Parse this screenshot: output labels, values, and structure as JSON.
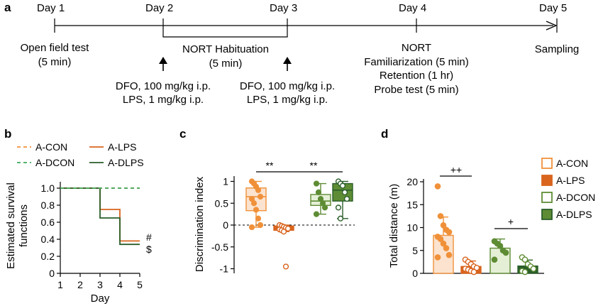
{
  "panel_a": {
    "label": "a",
    "days": [
      "Day 1",
      "Day 2",
      "Day 3",
      "Day 4",
      "Day 5"
    ],
    "texts": {
      "day1_line1": "Open field test",
      "day1_line2": "(5 min)",
      "hab_line1": "NORT Habituation",
      "hab_line2": "(5 min)",
      "inj1_line1": "DFO, 100 mg/kg i.p.",
      "inj1_line2": "LPS, 1 mg/kg i.p.",
      "inj2_line1": "DFO, 100 mg/kg i.p.",
      "inj2_line2": "LPS, 1 mg/kg i.p.",
      "day4_line1": "NORT",
      "day4_line2": "Familiarization (5 min)",
      "day4_line3": "Retention (1 hr)",
      "day4_line4": "Probe test (5 min)",
      "day5_line1": "Sampling"
    }
  },
  "panel_b": {
    "label": "b",
    "legend": {
      "con": "A-CON",
      "lps": "A-LPS",
      "dcon": "A-DCON",
      "dlps": "A-DLPS"
    },
    "ylabel_line1": "Estimated survival",
    "ylabel_line2": "functions",
    "xlabel": "Day",
    "yticks": [
      "0",
      "0.2",
      "0.4",
      "0.6",
      "0.8",
      "1.0"
    ],
    "xticks": [
      "1",
      "2",
      "3",
      "4",
      "5"
    ],
    "sig_hash": "#",
    "sig_dollar": "$"
  },
  "panel_c": {
    "label": "c",
    "ylabel": "Discrimination index",
    "yticks": [
      "1",
      "0.5",
      "0",
      "-0.5",
      "-1"
    ],
    "sig1": "**",
    "sig2": "**"
  },
  "panel_d": {
    "label": "d",
    "ylabel": "Total distance (m)",
    "yticks": [
      "0",
      "5",
      "10",
      "15",
      "20"
    ],
    "legend": [
      "A-CON",
      "A-LPS",
      "A-DCON",
      "A-DLPS"
    ],
    "sig1": "++",
    "sig2": "+"
  },
  "colors": {
    "con": "#F0913A",
    "lps": "#D9641E",
    "dcon": "#5E8C34",
    "dlps": "#2A5E2A",
    "con_fill": "#FBE3CF",
    "dcon_fill": "#E5EFD6",
    "dcon_dash": "#3BAA5C"
  },
  "chart_data": [
    {
      "type": "line",
      "panel": "b",
      "xlabel": "Day",
      "ylabel": "Estimated survival functions",
      "xlim": [
        1,
        5
      ],
      "ylim": [
        0,
        1.0
      ],
      "series": [
        {
          "name": "A-CON",
          "x": [
            1,
            5
          ],
          "y": [
            1.0,
            1.0
          ]
        },
        {
          "name": "A-DCON",
          "x": [
            1,
            5
          ],
          "y": [
            1.0,
            1.0
          ]
        },
        {
          "name": "A-LPS",
          "x": [
            1,
            3,
            3,
            4,
            4,
            5
          ],
          "y": [
            1.0,
            1.0,
            0.75,
            0.75,
            0.38,
            0.38
          ]
        },
        {
          "name": "A-DLPS",
          "x": [
            1,
            3,
            3,
            4,
            4,
            5
          ],
          "y": [
            1.0,
            1.0,
            0.65,
            0.65,
            0.34,
            0.34
          ]
        }
      ]
    },
    {
      "type": "box",
      "panel": "c",
      "ylabel": "Discrimination index",
      "ylim": [
        -1,
        1
      ],
      "groups": [
        {
          "name": "A-CON",
          "min": -0.05,
          "q1": 0.33,
          "median": 0.65,
          "q3": 0.85,
          "max": 1.0,
          "points": [
            1.0,
            0.95,
            0.88,
            0.8,
            0.65,
            0.6,
            0.5,
            0.35,
            0.15,
            0.0,
            -0.05
          ]
        },
        {
          "name": "A-LPS",
          "min": -0.15,
          "q1": -0.12,
          "median": -0.08,
          "q3": -0.02,
          "max": 0.0,
          "points": [
            0.0,
            -0.02,
            -0.04,
            -0.06,
            -0.08,
            -0.1,
            -0.12,
            -0.15,
            -0.95
          ]
        },
        {
          "name": "A-DCON",
          "min": 0.25,
          "q1": 0.45,
          "median": 0.55,
          "q3": 0.7,
          "max": 0.95,
          "points": [
            0.95,
            0.75,
            0.6,
            0.5,
            0.4,
            0.25
          ]
        },
        {
          "name": "A-DLPS",
          "min": 0.15,
          "q1": 0.55,
          "median": 0.8,
          "q3": 0.95,
          "max": 1.0,
          "points": [
            1.0,
            0.95,
            0.9,
            0.75,
            0.6,
            0.4,
            0.15
          ]
        }
      ]
    },
    {
      "type": "bar",
      "panel": "d",
      "ylabel": "Total distance (m)",
      "ylim": [
        0,
        20
      ],
      "categories": [
        "A-CON",
        "A-LPS",
        "A-DCON",
        "A-DLPS"
      ],
      "values": [
        8.3,
        1.5,
        5.5,
        1.6
      ],
      "errors": [
        4.0,
        1.2,
        2.0,
        1.3
      ],
      "points": [
        [
          19.0,
          12.5,
          10.5,
          9.5,
          9.0,
          8.0,
          7.5,
          6.5,
          5.5,
          4.0,
          3.5
        ],
        [
          3.0,
          2.5,
          2.0,
          1.5,
          1.2,
          1.0,
          0.8,
          0.5,
          0.3
        ],
        [
          7.0,
          6.5,
          6.0,
          5.0,
          4.5,
          3.0
        ],
        [
          3.5,
          3.0,
          2.0,
          1.5,
          1.0,
          0.5,
          0.3
        ]
      ]
    }
  ]
}
